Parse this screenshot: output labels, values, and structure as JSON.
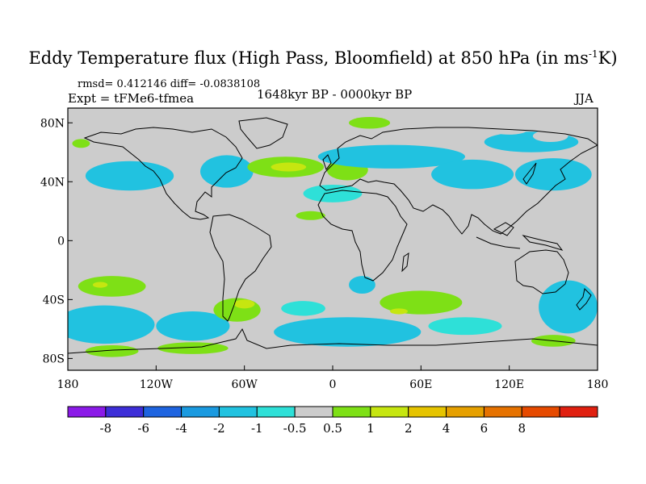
{
  "title": {
    "main": "Eddy Temperature flux (High Pass, Bloomfield) at 850 hPa (in ms",
    "sup": "-1",
    "tail": "K)"
  },
  "stats": "rmsd= 0.412146 diff= -0.0838108",
  "experiment": "Expt = tFMe6-tfmea",
  "period": "1648kyr BP - 0000kyr BP",
  "season": "JJA",
  "axes": {
    "lat_labels": [
      {
        "text": "80N",
        "lat": 80
      },
      {
        "text": "40N",
        "lat": 40
      },
      {
        "text": "0",
        "lat": 0
      },
      {
        "text": "40S",
        "lat": -40
      },
      {
        "text": "80S",
        "lat": -80
      }
    ],
    "lon_labels": [
      {
        "text": "180",
        "lon": -180
      },
      {
        "text": "120W",
        "lon": -120
      },
      {
        "text": "60W",
        "lon": -60
      },
      {
        "text": "0",
        "lon": 0
      },
      {
        "text": "60E",
        "lon": 60
      },
      {
        "text": "120E",
        "lon": 120
      },
      {
        "text": "180",
        "lon": 180
      }
    ]
  },
  "colorbar": {
    "colors": [
      "#8b1ae8",
      "#3d2ed8",
      "#1e64e0",
      "#1a9ae0",
      "#21c2e0",
      "#2ee0d8",
      "#cccccc",
      "#7ee016",
      "#c6e610",
      "#e6c400",
      "#e6a000",
      "#e67200",
      "#e64a00",
      "#e02010"
    ],
    "labels": [
      "-8",
      "-6",
      "-4",
      "-2",
      "-1",
      "-0.5",
      "0.5",
      "1",
      "2",
      "4",
      "6",
      "8"
    ]
  },
  "map_data": {
    "background_color": "#cccccc",
    "anomaly_regions": [
      {
        "lon": 25,
        "lat": 80,
        "rx": 14,
        "ry": 4,
        "level": 1
      },
      {
        "lon": -171,
        "lat": 66,
        "rx": 6,
        "ry": 3,
        "level": 1
      },
      {
        "lon": 135,
        "lat": 67,
        "rx": 32,
        "ry": 7,
        "level": -1
      },
      {
        "lon": 148,
        "lat": 71,
        "rx": 12,
        "ry": 4,
        "level": 0.5
      },
      {
        "lon": 120,
        "lat": 75,
        "rx": 12,
        "ry": 3,
        "level": 0.5
      },
      {
        "lon": -138,
        "lat": 44,
        "rx": 30,
        "ry": 10,
        "level": -1
      },
      {
        "lon": -72,
        "lat": 47,
        "rx": 18,
        "ry": 11,
        "level": -1
      },
      {
        "lon": -32,
        "lat": 50,
        "rx": 26,
        "ry": 7,
        "level": 1
      },
      {
        "lon": -30,
        "lat": 50,
        "rx": 12,
        "ry": 3,
        "level": 2
      },
      {
        "lon": 10,
        "lat": 48,
        "rx": 14,
        "ry": 7,
        "level": 1
      },
      {
        "lon": 40,
        "lat": 57,
        "rx": 50,
        "ry": 8,
        "level": -1
      },
      {
        "lon": 95,
        "lat": 45,
        "rx": 28,
        "ry": 10,
        "level": -1
      },
      {
        "lon": 150,
        "lat": 45,
        "rx": 26,
        "ry": 11,
        "level": -1
      },
      {
        "lon": 0,
        "lat": 32,
        "rx": 20,
        "ry": 6,
        "level": -0.5
      },
      {
        "lon": -15,
        "lat": 17,
        "rx": 10,
        "ry": 3,
        "level": 1
      },
      {
        "lon": -150,
        "lat": -31,
        "rx": 23,
        "ry": 7,
        "level": 1
      },
      {
        "lon": -158,
        "lat": -30,
        "rx": 5,
        "ry": 2,
        "level": 2
      },
      {
        "lon": -155,
        "lat": -57,
        "rx": 34,
        "ry": 13,
        "level": -1
      },
      {
        "lon": -95,
        "lat": -58,
        "rx": 25,
        "ry": 10,
        "level": -1
      },
      {
        "lon": -65,
        "lat": -47,
        "rx": 16,
        "ry": 8,
        "level": 1
      },
      {
        "lon": -60,
        "lat": -43,
        "rx": 7,
        "ry": 3,
        "level": 2
      },
      {
        "lon": -150,
        "lat": -75,
        "rx": 18,
        "ry": 4,
        "level": 1
      },
      {
        "lon": -95,
        "lat": -73,
        "rx": 24,
        "ry": 4,
        "level": 1
      },
      {
        "lon": -20,
        "lat": -46,
        "rx": 15,
        "ry": 5,
        "level": -0.5
      },
      {
        "lon": 20,
        "lat": -30,
        "rx": 9,
        "ry": 6,
        "level": -1
      },
      {
        "lon": 60,
        "lat": -42,
        "rx": 28,
        "ry": 8,
        "level": 1
      },
      {
        "lon": 45,
        "lat": -48,
        "rx": 6,
        "ry": 2,
        "level": 2
      },
      {
        "lon": 10,
        "lat": -62,
        "rx": 50,
        "ry": 10,
        "level": -1
      },
      {
        "lon": 90,
        "lat": -58,
        "rx": 25,
        "ry": 6,
        "level": -0.5
      },
      {
        "lon": 160,
        "lat": -45,
        "rx": 20,
        "ry": 18,
        "level": -1
      },
      {
        "lon": 150,
        "lat": -68,
        "rx": 15,
        "ry": 4,
        "level": 1
      }
    ]
  }
}
